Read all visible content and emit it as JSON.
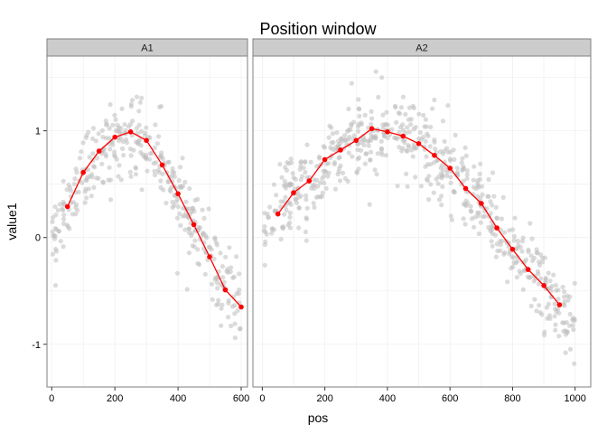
{
  "chart_data": {
    "type": "scatter",
    "title": "Position window",
    "xlabel": "pos",
    "ylabel": "value1",
    "ylim": [
      -1.4,
      1.7
    ],
    "yticks": [
      -1,
      0,
      1
    ],
    "ytick_labels": [
      "-1",
      "0",
      "1"
    ],
    "grid": true,
    "colors": {
      "points": "#bdbdbd",
      "line": "#ff0000",
      "strip_fill": "#cccccc",
      "grid": "#f0f0f0",
      "panel_border": "#7f7f7f"
    },
    "panels": [
      {
        "name": "A1",
        "xlim": [
          -15,
          620
        ],
        "xticks": [
          0,
          200,
          400,
          600
        ],
        "xtick_labels": [
          "0",
          "200",
          "400",
          "600"
        ],
        "window_means": {
          "x": [
            50,
            100,
            150,
            200,
            250,
            300,
            350,
            400,
            450,
            500,
            550,
            600
          ],
          "y": [
            0.29,
            0.61,
            0.81,
            0.94,
            0.99,
            0.91,
            0.68,
            0.41,
            0.12,
            -0.18,
            -0.49,
            -0.65
          ]
        },
        "raw_points": {
          "description": "approximately 600 semi-transparent grey points scattered around the window means",
          "x_range": [
            0,
            600
          ],
          "spread": 0.18
        }
      },
      {
        "name": "A2",
        "xlim": [
          -30,
          1050
        ],
        "xticks": [
          0,
          200,
          400,
          600,
          800,
          1000
        ],
        "xtick_labels": [
          "0",
          "200",
          "400",
          "600",
          "800",
          "1000"
        ],
        "window_means": {
          "x": [
            50,
            100,
            150,
            200,
            250,
            300,
            350,
            400,
            450,
            500,
            550,
            600,
            650,
            700,
            750,
            800,
            850,
            900,
            950
          ],
          "y": [
            0.22,
            0.42,
            0.53,
            0.73,
            0.82,
            0.91,
            1.02,
            0.99,
            0.95,
            0.88,
            0.77,
            0.65,
            0.46,
            0.32,
            0.09,
            -0.11,
            -0.3,
            -0.45,
            -0.63
          ]
        },
        "raw_points": {
          "description": "approximately 1000 semi-transparent grey points scattered around the window means",
          "x_range": [
            0,
            1000
          ],
          "spread": 0.18
        }
      }
    ]
  }
}
